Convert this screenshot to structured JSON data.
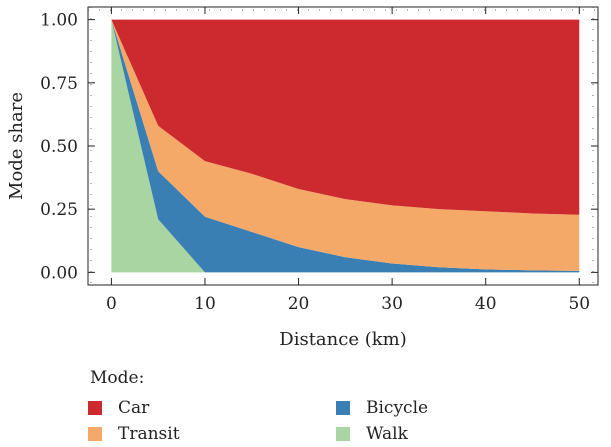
{
  "chart_data": {
    "type": "area",
    "stacked": true,
    "xlabel": "Distance (km)",
    "ylabel": "Mode share",
    "xlim": [
      -2.5,
      52
    ],
    "ylim": [
      -0.05,
      1.05
    ],
    "x_ticks": [
      0,
      10,
      20,
      30,
      40,
      50
    ],
    "y_ticks": [
      "0.00",
      "0.25",
      "0.50",
      "0.75",
      "1.00"
    ],
    "grid": false,
    "legend_position": "bottom",
    "x": [
      0,
      5,
      10,
      15,
      20,
      25,
      30,
      35,
      40,
      45,
      50
    ],
    "series": [
      {
        "name": "Walk",
        "color": "#a8d5a2",
        "values": [
          1.0,
          0.21,
          0.0,
          0.0,
          0.0,
          0.0,
          0.0,
          0.0,
          0.0,
          0.0,
          0.0
        ]
      },
      {
        "name": "Bicycle",
        "color": "#3a7fb4",
        "values": [
          0.0,
          0.19,
          0.22,
          0.16,
          0.1,
          0.06,
          0.035,
          0.02,
          0.012,
          0.008,
          0.006
        ]
      },
      {
        "name": "Transit",
        "color": "#f4a968",
        "values": [
          0.0,
          0.18,
          0.22,
          0.23,
          0.23,
          0.23,
          0.23,
          0.23,
          0.23,
          0.225,
          0.222
        ]
      },
      {
        "name": "Car",
        "color": "#cc2a2e",
        "values": [
          0.0,
          0.42,
          0.56,
          0.61,
          0.67,
          0.71,
          0.735,
          0.75,
          0.758,
          0.767,
          0.772
        ]
      }
    ]
  },
  "legend": {
    "title": "Mode:",
    "items": [
      {
        "name": "Car",
        "color": "#cc2a2e"
      },
      {
        "name": "Bicycle",
        "color": "#3a7fb4"
      },
      {
        "name": "Transit",
        "color": "#f4a968"
      },
      {
        "name": "Walk",
        "color": "#a8d5a2"
      }
    ]
  }
}
